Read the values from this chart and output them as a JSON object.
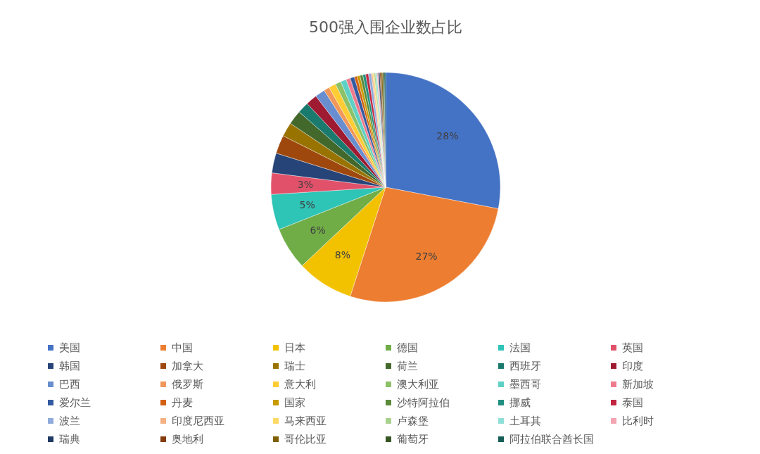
{
  "chart_data": {
    "type": "pie",
    "title": "500强入围企业数占比",
    "categories": [
      "美国",
      "中国",
      "日本",
      "德国",
      "法国",
      "英国",
      "韩国",
      "加拿大",
      "瑞士",
      "荷兰",
      "西班牙",
      "印度",
      "巴西",
      "俄罗斯",
      "意大利",
      "澳大利亚",
      "墨西哥",
      "新加坡",
      "爱尔兰",
      "丹麦",
      "国家",
      "沙特阿拉伯",
      "挪威",
      "泰国",
      "波兰",
      "印度尼西亚",
      "马来西亚",
      "卢森堡",
      "土耳其",
      "比利时",
      "瑞典",
      "奥地利",
      "哥伦比亚",
      "葡萄牙",
      "阿拉伯联合酋长国"
    ],
    "values": [
      28,
      27,
      8,
      6,
      5,
      3,
      2.8,
      2.6,
      2,
      2,
      1.6,
      1.6,
      1.4,
      0.8,
      1,
      0.8,
      0.8,
      0.6,
      0.6,
      0.4,
      0.4,
      0.4,
      0.4,
      0.4,
      0.4,
      0.2,
      0.2,
      0.2,
      0.2,
      0.2,
      0.2,
      0.2,
      0.2,
      0.2,
      0.2
    ],
    "value_labels": [
      "28%",
      "27%",
      "8%",
      "6%",
      "5%",
      "3%",
      null,
      null,
      null,
      null,
      null,
      null,
      null,
      null,
      null,
      null,
      null,
      null,
      null,
      null,
      null,
      null,
      null,
      null,
      null,
      null,
      null,
      null,
      null,
      null,
      null,
      null,
      null,
      null,
      null
    ],
    "colors": [
      "#4472c4",
      "#ed7d31",
      "#f2c100",
      "#70ad47",
      "#2ec4b6",
      "#e2516a",
      "#264478",
      "#9e480e",
      "#997300",
      "#43682b",
      "#1a7a6e",
      "#9e1b32",
      "#698ed0",
      "#f1975a",
      "#ffcd33",
      "#8cc168",
      "#5ed1c4",
      "#ef7a8d",
      "#335aa1",
      "#d26012",
      "#c89a00",
      "#5a8a3a",
      "#208f80",
      "#c02640",
      "#8faadc",
      "#f4b183",
      "#ffd966",
      "#a9d18e",
      "#8ee0d6",
      "#f4a5b2",
      "#1f3864",
      "#843c0c",
      "#7f6000",
      "#375623",
      "#145e55"
    ],
    "legend": "bottom"
  }
}
